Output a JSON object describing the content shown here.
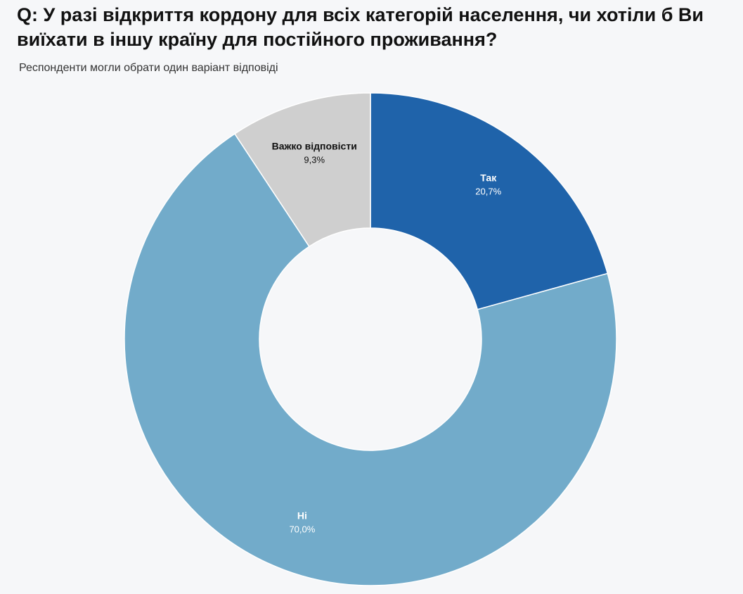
{
  "header": {
    "title": "Q: У разі відкриття кордону для всіх категорій населення, чи хотіли б Ви виїхати в іншу країну для постійного проживання?",
    "subtitle": "Респонденти могли обрати один варіант відповіді"
  },
  "chart_data": {
    "type": "pie",
    "title": "Q: У разі відкриття кордону для всіх категорій населення, чи хотіли б Ви виїхати в іншу країну для постійного проживання?",
    "subtitle": "Респонденти могли обрати один варіант відповіді",
    "donut": true,
    "slices": [
      {
        "label": "Так",
        "value": 20.7,
        "display": "20,7%",
        "color": "#1f63aa",
        "text_color": "#ffffff"
      },
      {
        "label": "Ні",
        "value": 70.0,
        "display": "70,0%",
        "color": "#72abca",
        "text_color": "#ffffff"
      },
      {
        "label": "Важко відповісти",
        "value": 9.3,
        "display": "9,3%",
        "color": "#cfcfcf",
        "text_color": "#111111"
      }
    ]
  }
}
